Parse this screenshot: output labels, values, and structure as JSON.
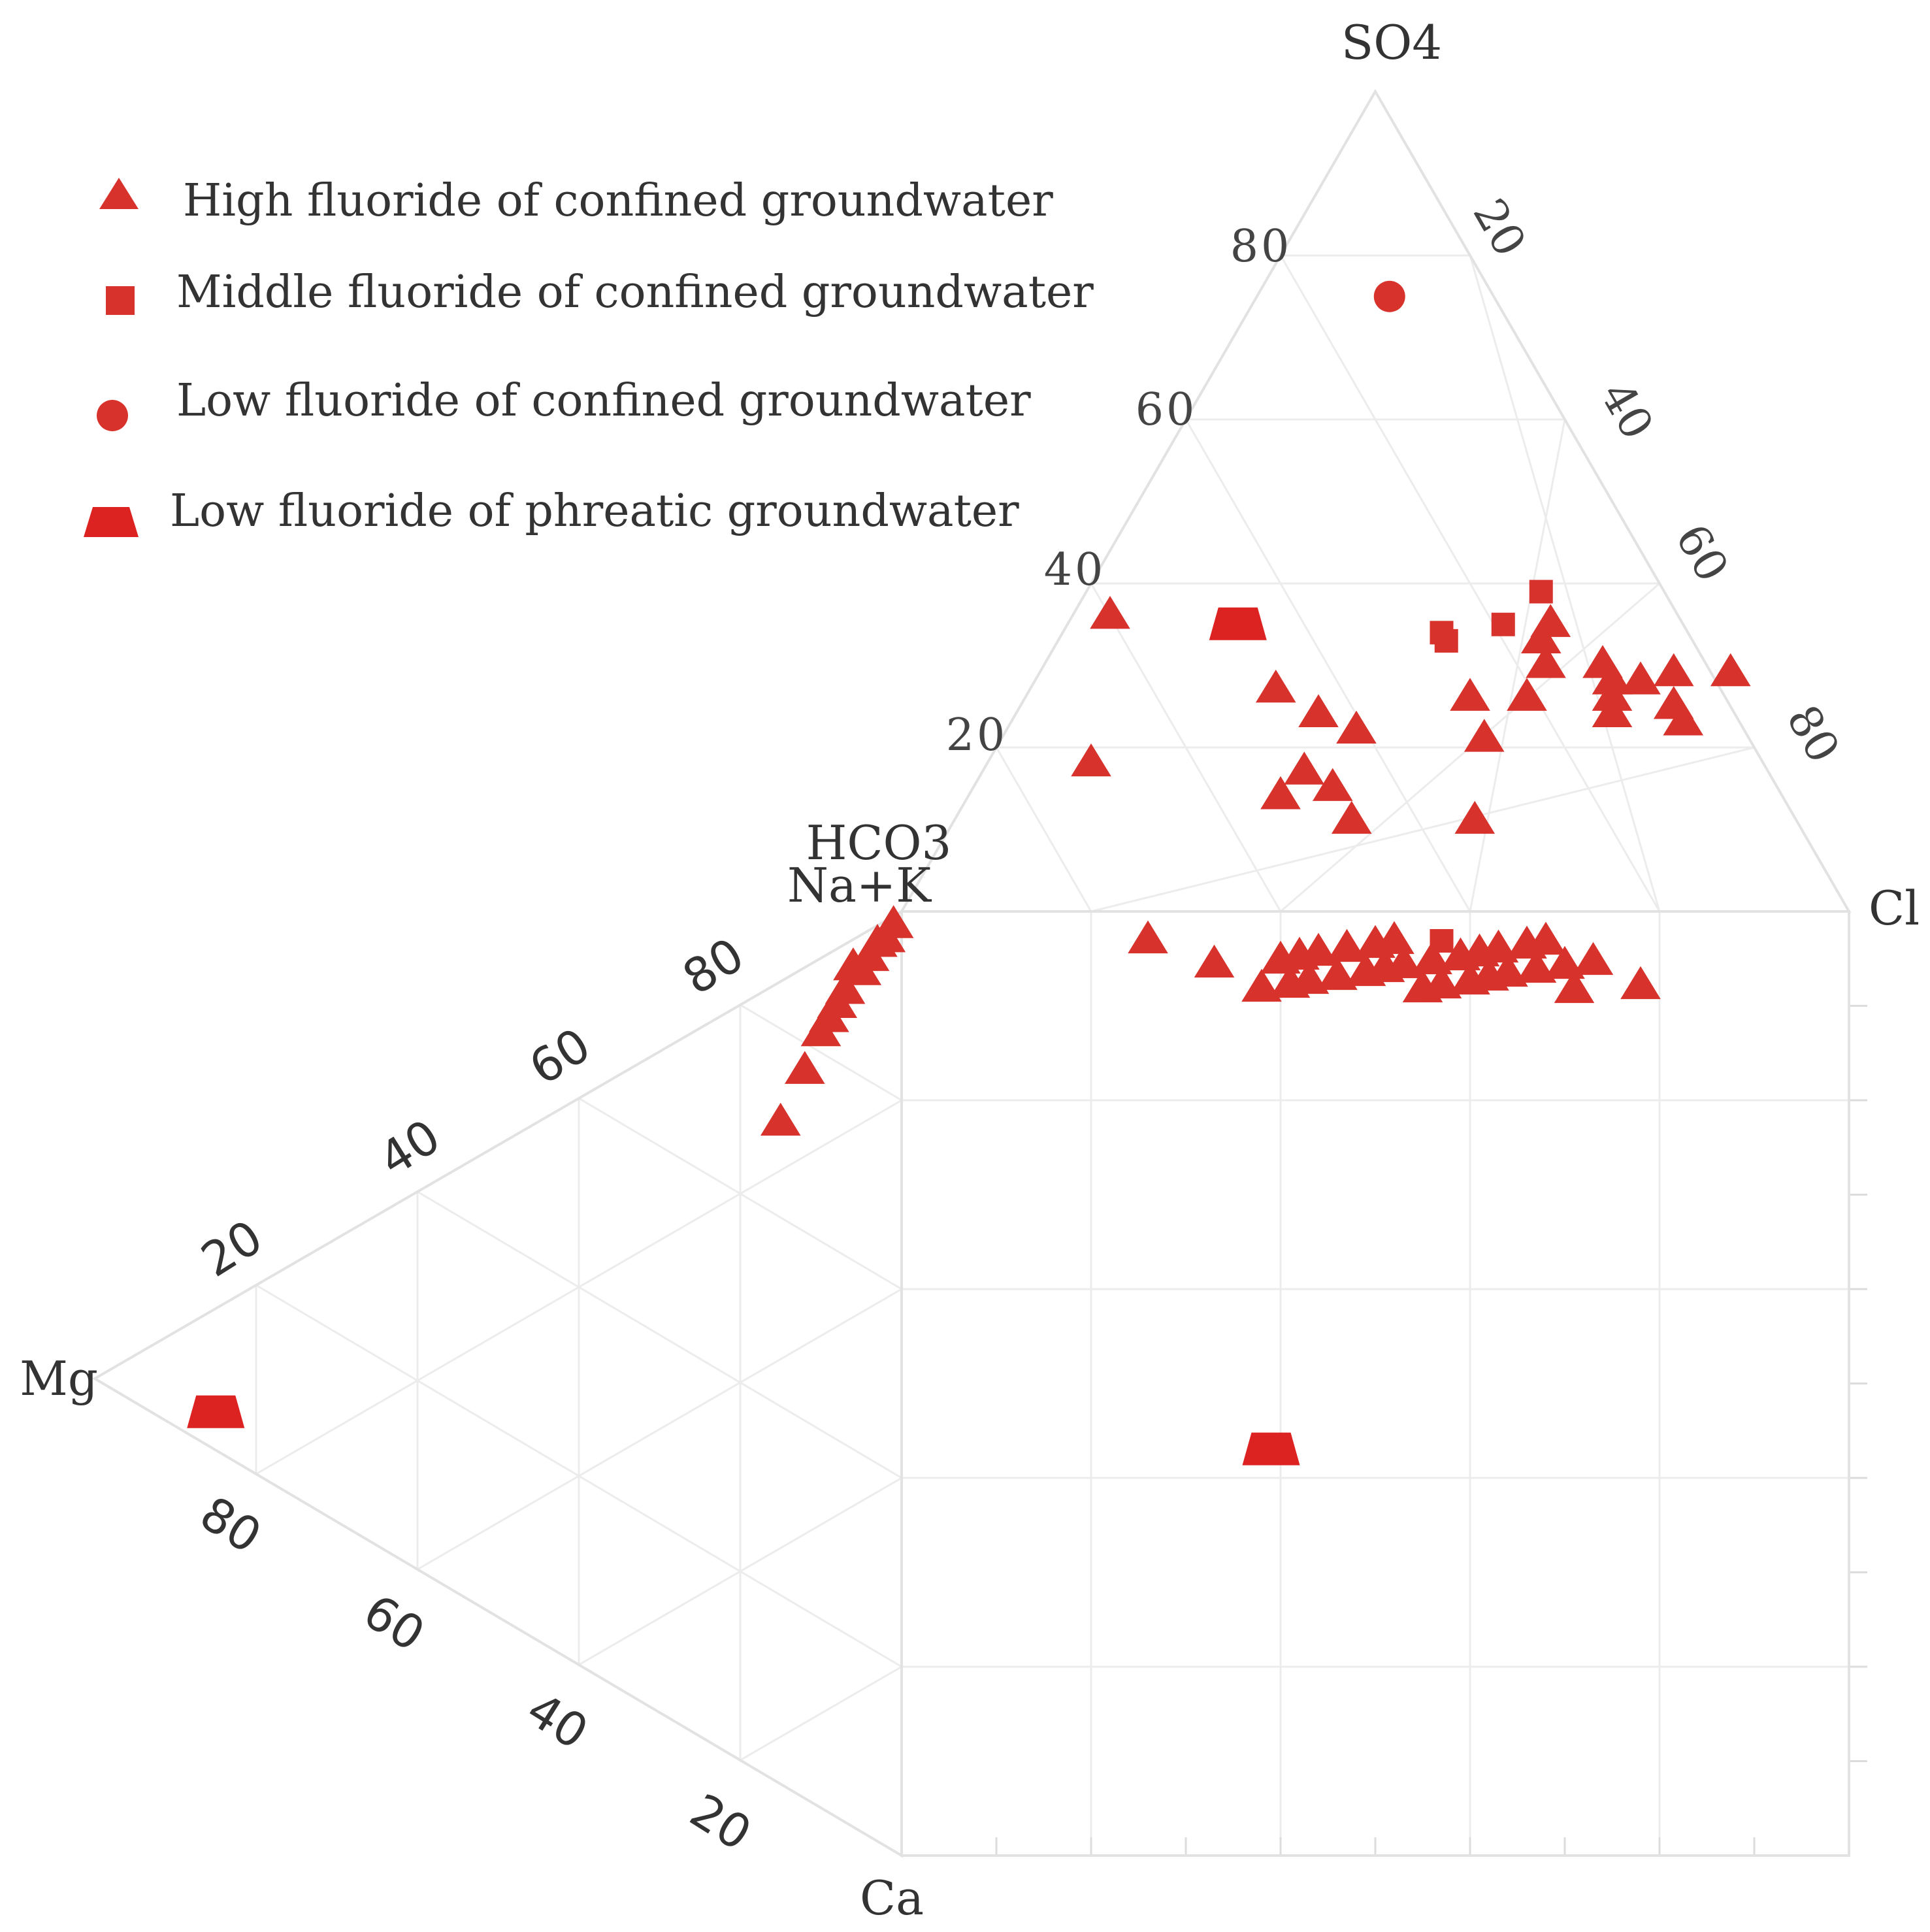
{
  "chart_data": {
    "type": "scatter",
    "subtype": "piper-like diagram",
    "axis_labels": {
      "top_apex": "SO4",
      "left_top_vertex": "HCO3",
      "right_vertex": "Cl",
      "cation_top_vertex": "Na+K",
      "cation_left_vertex": "Mg",
      "cation_bottom_vertex": "Ca"
    },
    "anion_tick_labels_left": [
      "20",
      "40",
      "60",
      "80"
    ],
    "anion_tick_labels_right": [
      "20",
      "40",
      "60",
      "80"
    ],
    "cation_tick_labels_upper": [
      "20",
      "40",
      "60",
      "80"
    ],
    "cation_tick_labels_lower": [
      "20",
      "40",
      "60",
      "80"
    ],
    "grid": true,
    "legend_position": "top-left",
    "marker_color": "#d7322b",
    "legend": [
      {
        "label": "High fluoride of confined groundwater",
        "marker": "triangle"
      },
      {
        "label": "Middle fluoride of confined groundwater",
        "marker": "square"
      },
      {
        "label": "Low fluoride of confined groundwater",
        "marker": "circle"
      },
      {
        "label": "Low fluoride of phreatic groundwater",
        "marker": "trapezoid"
      }
    ],
    "series": [
      {
        "name": "High fluoride of confined groundwater",
        "marker": "triangle",
        "anion_points_SO4_Cl": [
          [
            36,
            4
          ],
          [
            18,
            11
          ],
          [
            27,
            26
          ],
          [
            24,
            32
          ],
          [
            15,
            38
          ],
          [
            22,
            37
          ],
          [
            14,
            33
          ],
          [
            17,
            34
          ],
          [
            11,
            42
          ],
          [
            33,
            51
          ],
          [
            26,
            47
          ],
          [
            26,
            53
          ],
          [
            21,
            51
          ],
          [
            11,
            55
          ],
          [
            30,
            53
          ],
          [
            35,
            51
          ],
          [
            30,
            59
          ],
          [
            28,
            61
          ],
          [
            26,
            62
          ],
          [
            24,
            63
          ],
          [
            28,
            64
          ],
          [
            29,
            67
          ],
          [
            25,
            69
          ],
          [
            23,
            71
          ],
          [
            29,
            73
          ]
        ],
        "cation_points_Mg_Ca": [
          [
            1,
            1
          ],
          [
            2,
            2
          ],
          [
            3,
            2
          ],
          [
            4,
            3
          ],
          [
            5,
            4
          ],
          [
            6,
            3
          ],
          [
            7,
            5
          ],
          [
            8,
            6
          ],
          [
            9,
            7
          ],
          [
            10,
            8
          ],
          [
            12,
            11
          ],
          [
            15,
            15
          ]
        ],
        "bottom_row_Cl": [
          26,
          33,
          38,
          40,
          41,
          42,
          43,
          44,
          46,
          47,
          49,
          50,
          51,
          52,
          53,
          55,
          56,
          57,
          59,
          60,
          61,
          62,
          63,
          64,
          66,
          67,
          68,
          70,
          71,
          73,
          78
        ]
      },
      {
        "name": "Middle fluoride of confined groundwater",
        "marker": "square",
        "anion_points_SO4_Cl": [
          [
            34,
            40
          ],
          [
            33,
            41
          ],
          [
            35,
            46
          ],
          [
            39,
            48
          ]
        ],
        "bottom_row_Cl": [
          57
        ]
      },
      {
        "name": "Low fluoride of confined groundwater",
        "marker": "circle",
        "anion_points_SO4_Cl": [
          [
            75,
            14
          ]
        ]
      },
      {
        "name": "Low fluoride of phreatic groundwater",
        "marker": "trapezoid",
        "anion_points_SO4_Cl": [
          [
            35,
            18
          ]
        ],
        "cation_points_Mg_Ca": [
          [
            85,
            11
          ]
        ],
        "diamond_points_Cl": [
          [
            39,
            57
          ]
        ]
      }
    ]
  }
}
